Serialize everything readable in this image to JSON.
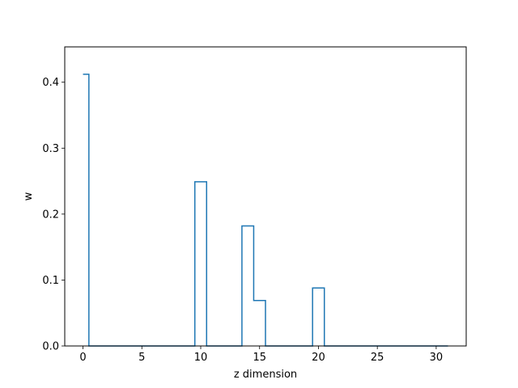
{
  "chart_data": {
    "type": "line",
    "drawstyle": "steps-mid",
    "title": "",
    "xlabel": "z dimension",
    "ylabel": "w",
    "xlim": [
      -1.55,
      32.55
    ],
    "ylim": [
      0,
      0.4536
    ],
    "xticks": [
      0,
      5,
      10,
      15,
      20,
      25,
      30
    ],
    "yticks": [
      0.0,
      0.1,
      0.2,
      0.3,
      0.4
    ],
    "ytick_format": 1,
    "x": [
      0,
      1,
      2,
      3,
      4,
      5,
      6,
      7,
      8,
      9,
      10,
      11,
      12,
      13,
      14,
      15,
      16,
      17,
      18,
      19,
      20,
      21,
      22,
      23,
      24,
      25,
      26,
      27,
      28,
      29,
      30,
      31
    ],
    "series": [
      {
        "values": [
          0.412,
          0,
          0,
          0,
          0,
          0,
          0,
          0,
          0,
          0,
          0.249,
          0,
          0,
          0,
          0.182,
          0.069,
          0,
          0,
          0,
          0,
          0.088,
          0,
          0,
          0,
          0,
          0,
          0,
          0,
          0,
          0,
          0,
          0
        ],
        "color": "#1f77b4"
      }
    ],
    "grid": false,
    "legend": "none"
  }
}
